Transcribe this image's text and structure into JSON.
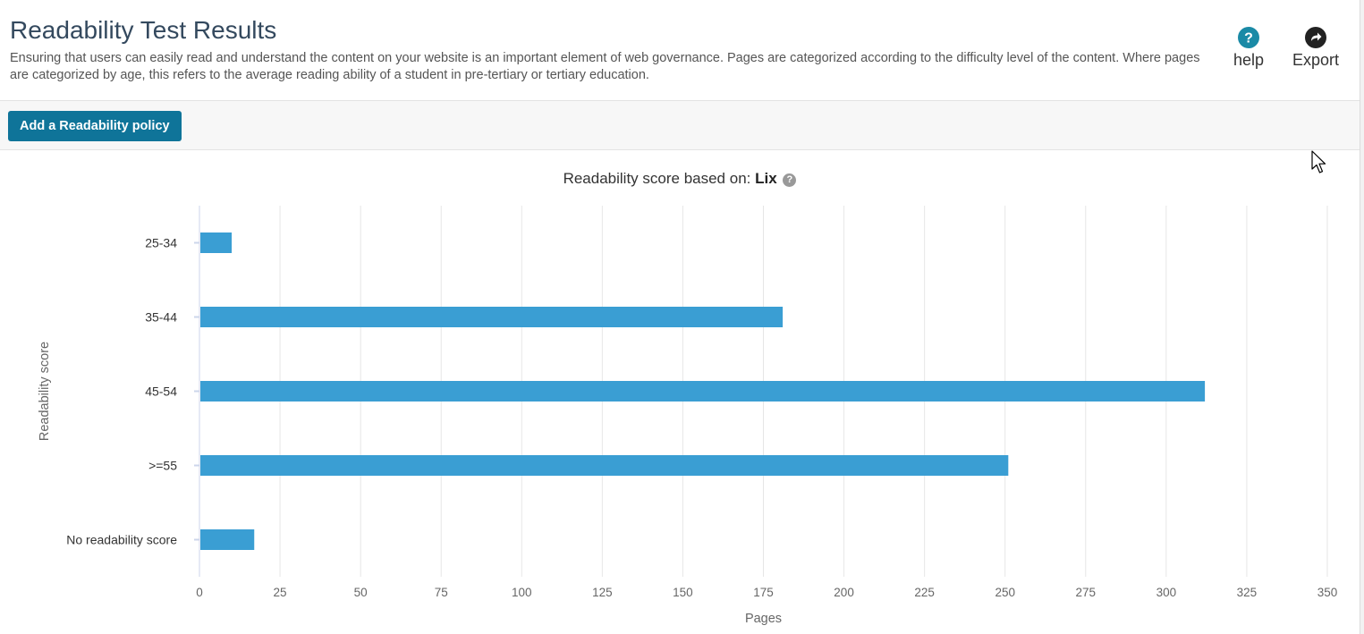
{
  "header": {
    "title": "Readability Test Results",
    "description": "Ensuring that users can easily read and understand the content on your website is an important element of web governance. Pages are categorized according to the difficulty level of the content. Where pages are categorized by age, this refers to the average reading ability of a student in pre-tertiary or tertiary education.",
    "actions": [
      {
        "label": "help",
        "icon": "question-circle-icon"
      },
      {
        "label": "Export",
        "icon": "share-arrow-icon"
      }
    ]
  },
  "toolbar": {
    "add_policy_label": "Add a Readability policy"
  },
  "chart": {
    "caption_prefix": "Readability score based on: ",
    "caption_bold": "Lix",
    "help_glyph": "?"
  },
  "colors": {
    "bar": "#3a9ed3",
    "button": "#0f7499",
    "title": "#34495e",
    "help_icon": "#1a8aa6"
  },
  "chart_data": {
    "type": "bar",
    "orientation": "horizontal",
    "categories": [
      "25-34",
      "35-44",
      "45-54",
      ">=55",
      "No readability score"
    ],
    "values": [
      10,
      181,
      312,
      251,
      17
    ],
    "xlabel": "Pages",
    "ylabel": "Readability score",
    "xlim": [
      0,
      350
    ],
    "xticks": [
      0,
      25,
      50,
      75,
      100,
      125,
      150,
      175,
      200,
      225,
      250,
      275,
      300,
      325,
      350
    ],
    "grid": true,
    "legend": "none"
  }
}
